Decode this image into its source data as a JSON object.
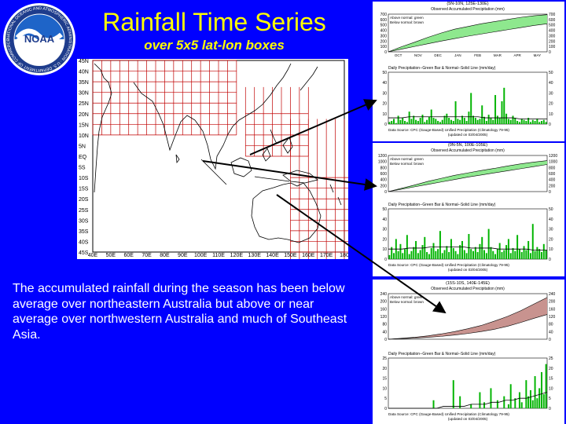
{
  "slide": {
    "title": "Rainfall Time Series",
    "subtitle": "over 5x5 lat-lon boxes",
    "caption": "The accumulated rainfall during the season has been below average over northeastern Australia but above or near average over northwestern Australia and much of Southeast Asia.",
    "logo_text": "NOAA",
    "logo_ring_text": "NATIONAL OCEANIC AND ATMOSPHERIC ADMINISTRATION · U.S. DEPARTMENT OF COMMERCE",
    "colors": {
      "background": "#0000ff",
      "title": "#ffff00",
      "above_normal": "#8ee88e",
      "below_normal": "#c8938f",
      "daily_bar": "#00b400",
      "grid": "#c00000"
    }
  },
  "map": {
    "lat_labels": [
      "45N",
      "40N",
      "35N",
      "30N",
      "25N",
      "20N",
      "15N",
      "10N",
      "5N",
      "EQ",
      "5S",
      "10S",
      "15S",
      "20S",
      "25S",
      "30S",
      "35S",
      "40S",
      "45S"
    ],
    "lon_labels": [
      "40E",
      "50E",
      "60E",
      "70E",
      "80E",
      "90E",
      "100E",
      "110E",
      "120E",
      "130E",
      "140E",
      "150E",
      "160E",
      "170E",
      "180"
    ]
  },
  "chart_data": [
    {
      "type": "area",
      "title": "(5N-10N, 125E-130E)",
      "subtitle": "Observed Accumulated Precipitation (mm)",
      "legend": [
        "Above normal: green",
        "Below normal: brown"
      ],
      "legend_position": "top-left",
      "x_tick_labels": [
        "OCT",
        "NOV",
        "DEC",
        "JAN",
        "FEB",
        "MAR",
        "APR",
        "MAY"
      ],
      "ylim": [
        0,
        700
      ],
      "y_ticks": [
        0,
        100,
        200,
        300,
        400,
        500,
        600,
        700
      ],
      "x": [
        0,
        20,
        40,
        60,
        80,
        100,
        120,
        140,
        160,
        180,
        200,
        220,
        240
      ],
      "normal": [
        0,
        50,
        100,
        150,
        200,
        245,
        290,
        330,
        370,
        410,
        450,
        490,
        520
      ],
      "observed": [
        0,
        95,
        180,
        270,
        350,
        420,
        470,
        520,
        560,
        600,
        640,
        670,
        690
      ]
    },
    {
      "type": "bar",
      "title": "Daily Precipitation--Green Bar & Normal--Solid Line (mm/day)",
      "footer": "Data Source: CPC (Gauge-Based) Unified Precipitation (Climatology 79-95)",
      "footer2": "(updated on 03/04/2005)",
      "ylim": [
        0,
        50
      ],
      "y_ticks": [
        0,
        10,
        20,
        30,
        40,
        50
      ],
      "values": [
        2,
        3,
        5,
        1,
        8,
        4,
        6,
        3,
        2,
        12,
        5,
        8,
        4,
        3,
        6,
        9,
        2,
        4,
        7,
        14,
        6,
        5,
        3,
        2,
        4,
        8,
        10,
        6,
        4,
        3,
        22,
        5,
        4,
        8,
        6,
        3,
        12,
        30,
        8,
        6,
        4,
        5,
        18,
        7,
        3,
        9,
        6,
        4,
        28,
        8,
        6,
        22,
        35,
        10,
        5,
        4,
        8,
        6,
        3,
        2,
        5,
        4,
        3,
        6,
        2,
        4,
        3,
        5,
        2,
        3,
        4,
        2
      ],
      "normal": [
        6,
        6,
        6,
        7,
        7,
        7,
        7,
        7,
        7,
        7,
        7,
        7,
        7,
        7,
        6,
        6,
        6,
        6,
        6,
        5,
        5,
        5,
        5,
        5
      ]
    },
    {
      "type": "area",
      "title": "(0N-5N, 100E-105E)",
      "subtitle": "Observed Accumulated Precipitation (mm)",
      "legend": [
        "Above normal: green",
        "Below normal: brown"
      ],
      "legend_position": "top-left",
      "ylim": [
        0,
        1200
      ],
      "y_ticks": [
        0,
        200,
        400,
        600,
        800,
        1000,
        1200
      ],
      "x": [
        0,
        20,
        40,
        60,
        80,
        100,
        120,
        140,
        160,
        180,
        200,
        220,
        240
      ],
      "normal": [
        0,
        80,
        160,
        240,
        320,
        400,
        480,
        550,
        620,
        690,
        760,
        830,
        900
      ],
      "observed": [
        0,
        110,
        220,
        340,
        440,
        540,
        620,
        700,
        770,
        850,
        920,
        980,
        1030
      ]
    },
    {
      "type": "bar",
      "title": "Daily Precipitation--Green Bar & Normal--Solid Line (mm/day)",
      "footer": "Data Source: CPC (Gauge-Based) Unified Precipitation (Climatology 79-95)",
      "footer2": "(updated on 03/04/2005)",
      "ylim": [
        0,
        50
      ],
      "y_ticks": [
        0,
        10,
        20,
        30,
        40,
        50
      ],
      "values": [
        4,
        12,
        6,
        20,
        8,
        15,
        6,
        10,
        24,
        5,
        8,
        12,
        18,
        6,
        9,
        14,
        22,
        7,
        5,
        11,
        16,
        8,
        10,
        28,
        6,
        9,
        13,
        7,
        20,
        11,
        8,
        5,
        14,
        18,
        9,
        6,
        25,
        10,
        8,
        12,
        7,
        15,
        22,
        9,
        6,
        30,
        12,
        8,
        5,
        10,
        16,
        7,
        9,
        14,
        20,
        6,
        11,
        8,
        24,
        10,
        7,
        13,
        9,
        18,
        6,
        35,
        8,
        12,
        10,
        7,
        15,
        9
      ],
      "normal": [
        10,
        10,
        10,
        11,
        11,
        11,
        12,
        12,
        12,
        12,
        12,
        12,
        11,
        11,
        11,
        11,
        10,
        10,
        10,
        10,
        10,
        9,
        9,
        9
      ]
    },
    {
      "type": "area",
      "title": "(15S-10S, 140E-145E)",
      "subtitle": "Observed Accumulated Precipitation (mm)",
      "legend": [
        "Above normal: green",
        "Below normal: brown"
      ],
      "legend_position": "top-left",
      "ylim": [
        0,
        240
      ],
      "y_ticks": [
        0,
        40,
        80,
        120,
        160,
        200,
        240
      ],
      "x": [
        0,
        20,
        40,
        60,
        80,
        100,
        120,
        140,
        160,
        180,
        200,
        220,
        240
      ],
      "normal": [
        0,
        5,
        10,
        18,
        28,
        40,
        55,
        72,
        95,
        120,
        150,
        185,
        220
      ],
      "observed": [
        0,
        3,
        6,
        10,
        15,
        22,
        30,
        40,
        52,
        68,
        88,
        110,
        130
      ]
    },
    {
      "type": "bar",
      "title": "Daily Precipitation--Green Bar & Normal--Solid Line (mm/day)",
      "footer": "Data Source: CPC (Gauge-Based) Unified Precipitation (Climatology 79-95)",
      "footer2": "(updated on 03/04/2005)",
      "ylim": [
        0,
        25
      ],
      "y_ticks": [
        0,
        5,
        10,
        15,
        20,
        25
      ],
      "values": [
        0,
        0,
        0,
        0,
        0,
        0,
        0,
        0,
        0,
        0,
        0,
        0,
        0,
        0,
        0,
        0,
        0,
        0,
        0,
        0,
        4,
        0,
        0,
        0,
        0,
        0,
        0,
        0,
        0,
        14,
        0,
        0,
        6,
        0,
        0,
        0,
        0,
        2,
        0,
        0,
        0,
        8,
        0,
        3,
        0,
        0,
        10,
        0,
        0,
        4,
        0,
        0,
        6,
        0,
        2,
        12,
        0,
        5,
        0,
        8,
        3,
        0,
        14,
        6,
        9,
        4,
        16,
        5,
        10,
        18,
        7,
        22
      ],
      "normal": [
        0,
        0,
        0,
        0,
        0,
        0,
        0,
        0,
        1,
        1,
        1,
        1,
        2,
        2,
        2,
        3,
        3,
        4,
        4,
        5,
        5,
        6,
        7,
        8
      ]
    }
  ]
}
